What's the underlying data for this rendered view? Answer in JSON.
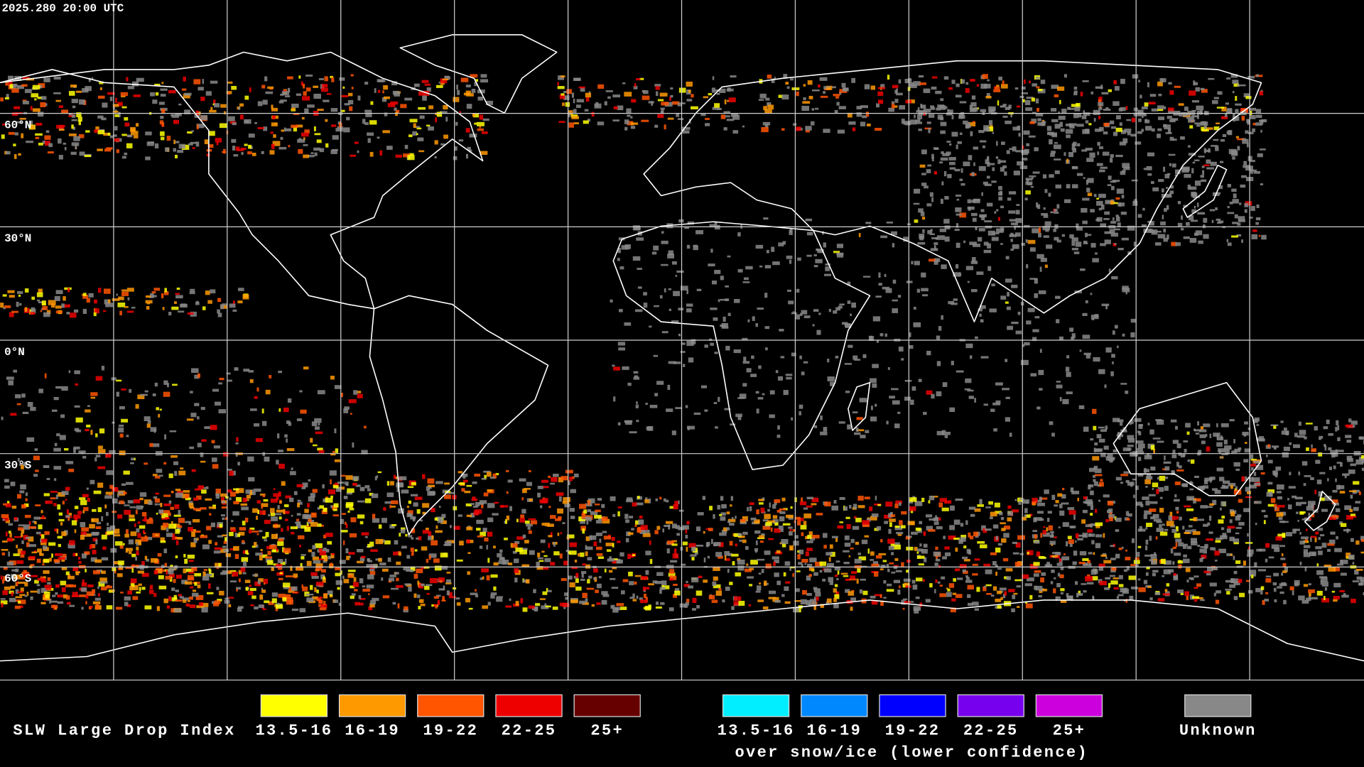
{
  "header": {
    "timestamp": "2025.280 20:00 UTC"
  },
  "map": {
    "lat_labels": [
      "60°N",
      "30°N",
      "0°N",
      "30°S",
      "60°S"
    ]
  },
  "legend": {
    "title": "SLW Large Drop Index",
    "liquid": [
      {
        "label": "13.5-16",
        "color": "#ffff00"
      },
      {
        "label": "16-19",
        "color": "#ff9900"
      },
      {
        "label": "19-22",
        "color": "#ff5500"
      },
      {
        "label": "22-25",
        "color": "#ee0000"
      },
      {
        "label": "25+",
        "color": "#660000"
      }
    ],
    "snow_ice": [
      {
        "label": "13.5-16",
        "color": "#00eeff"
      },
      {
        "label": "16-19",
        "color": "#0088ff"
      },
      {
        "label": "19-22",
        "color": "#0000ff"
      },
      {
        "label": "22-25",
        "color": "#7700ee"
      },
      {
        "label": "25+",
        "color": "#cc00dd"
      }
    ],
    "snow_ice_note": "over snow/ice (lower confidence)",
    "unknown": {
      "label": "Unknown",
      "color": "#888888"
    }
  }
}
